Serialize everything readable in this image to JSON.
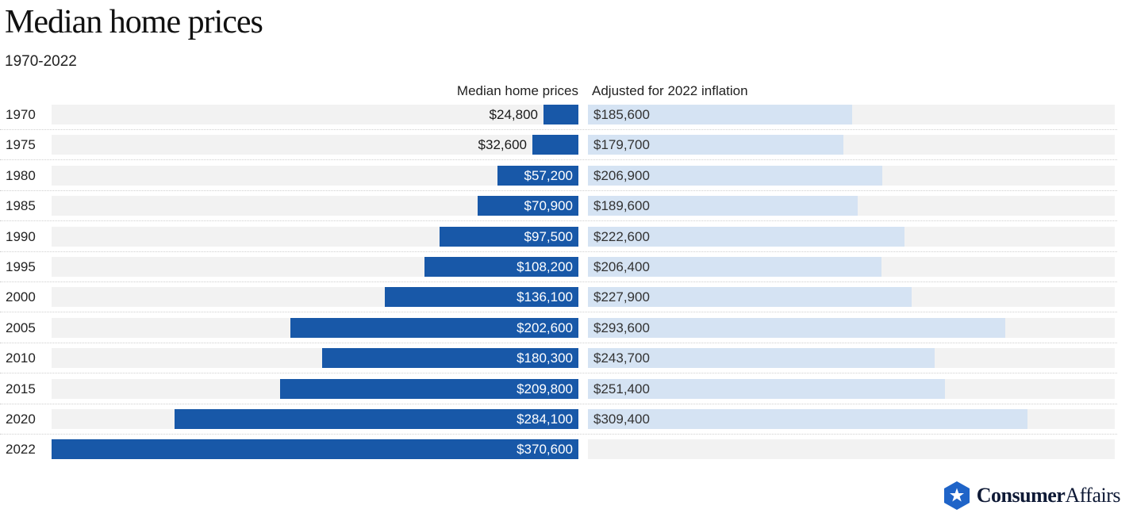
{
  "colors": {
    "nominal_bar": "#1858a8",
    "adjusted_bar": "#d5e3f3",
    "row_background": "#f2f2f2",
    "logo_blue": "#1f64c8"
  },
  "logo": {
    "icon": "star-hexagon-icon",
    "part1": "Consumer",
    "part2": "Affairs"
  },
  "chart_data": {
    "type": "bar",
    "orientation": "horizontal-back-to-back",
    "title": "Median home prices",
    "subtitle": "1970-2022",
    "categories": [
      "1970",
      "1975",
      "1980",
      "1985",
      "1990",
      "1995",
      "2000",
      "2005",
      "2010",
      "2015",
      "2020",
      "2022"
    ],
    "series": [
      {
        "name": "Median home prices",
        "values": [
          24800,
          32600,
          57200,
          70900,
          97500,
          108200,
          136100,
          202600,
          180300,
          209800,
          284100,
          370600
        ],
        "labels": [
          "$24,800",
          "$32,600",
          "$57,200",
          "$70,900",
          "$97,500",
          "$108,200",
          "$136,100",
          "$202,600",
          "$180,300",
          "$209,800",
          "$284,100",
          "$370,600"
        ]
      },
      {
        "name": "Adjusted for 2022 inflation",
        "values": [
          185600,
          179700,
          206900,
          189600,
          222600,
          206400,
          227900,
          293600,
          243700,
          251400,
          309400,
          null
        ],
        "labels": [
          "$185,600",
          "$179,700",
          "$206,900",
          "$189,600",
          "$222,600",
          "$206,400",
          "$227,900",
          "$293,600",
          "$243,700",
          "$251,400",
          "$309,400",
          ""
        ]
      }
    ],
    "xlim": [
      0,
      370600
    ],
    "grid": false,
    "legend": "none"
  }
}
